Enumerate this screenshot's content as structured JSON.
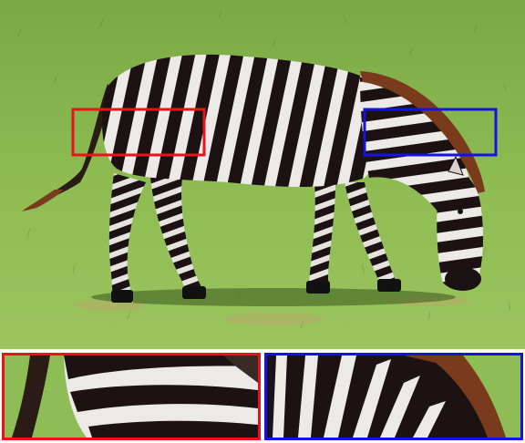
{
  "scene": {
    "subject": "zebra",
    "background": "grass-field"
  },
  "colors": {
    "roi_red": "#e8141a",
    "roi_blue": "#1414e0",
    "grass_light": "#8fbd55",
    "grass_dark": "#5f8f33",
    "stripe_dark": "#1c1214",
    "stripe_light": "#ece9e6",
    "mane_brown": "#7a3b1c"
  },
  "insets": [
    {
      "region": "hindquarter",
      "color_key": "roi_red"
    },
    {
      "region": "neck-mane",
      "color_key": "roi_blue"
    }
  ]
}
